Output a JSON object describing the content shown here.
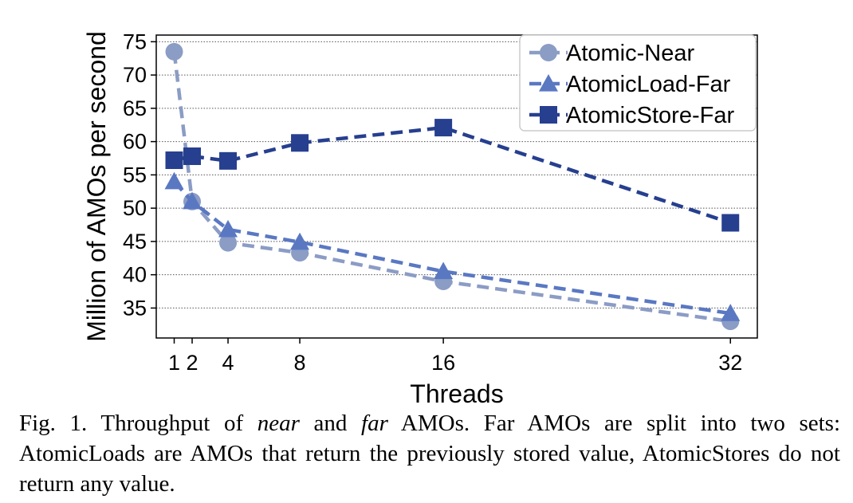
{
  "chart_data": {
    "type": "line",
    "xlabel": "Threads",
    "ylabel": "Million of AMOs per second",
    "x": [
      1,
      2,
      4,
      8,
      16,
      32
    ],
    "x_tick_labels": [
      "1",
      "2",
      "4",
      "8",
      "16",
      "32"
    ],
    "y_ticks": [
      35,
      40,
      45,
      50,
      55,
      60,
      65,
      70,
      75
    ],
    "y_tick_labels": [
      "35",
      "40",
      "45",
      "50",
      "55",
      "60",
      "65",
      "70",
      "75"
    ],
    "xlim": [
      0,
      33.5
    ],
    "ylim": [
      30.5,
      76
    ],
    "grid": "horizontal-dotted",
    "legend_position": "top-right",
    "series": [
      {
        "name": "Atomic-Near",
        "marker": "circle",
        "color": "#8b9cc5",
        "values": [
          73.5,
          51.0,
          44.8,
          43.3,
          39.0,
          33.0
        ]
      },
      {
        "name": "AtomicLoad-Far",
        "marker": "triangle",
        "color": "#5a78c2",
        "values": [
          54.0,
          51.0,
          46.8,
          44.9,
          40.5,
          34.2
        ]
      },
      {
        "name": "AtomicStore-Far",
        "marker": "square",
        "color": "#263f8f",
        "values": [
          57.2,
          57.8,
          57.1,
          59.8,
          62.1,
          47.8
        ]
      }
    ]
  },
  "caption": {
    "prefix": "Fig. 1.  Throughput of ",
    "em1": "near",
    "mid1": " and ",
    "em2": "far",
    "rest": " AMOs. Far AMOs are split into two sets: AtomicLoads are AMOs that return the previously stored value, AtomicStores do not return any value."
  }
}
